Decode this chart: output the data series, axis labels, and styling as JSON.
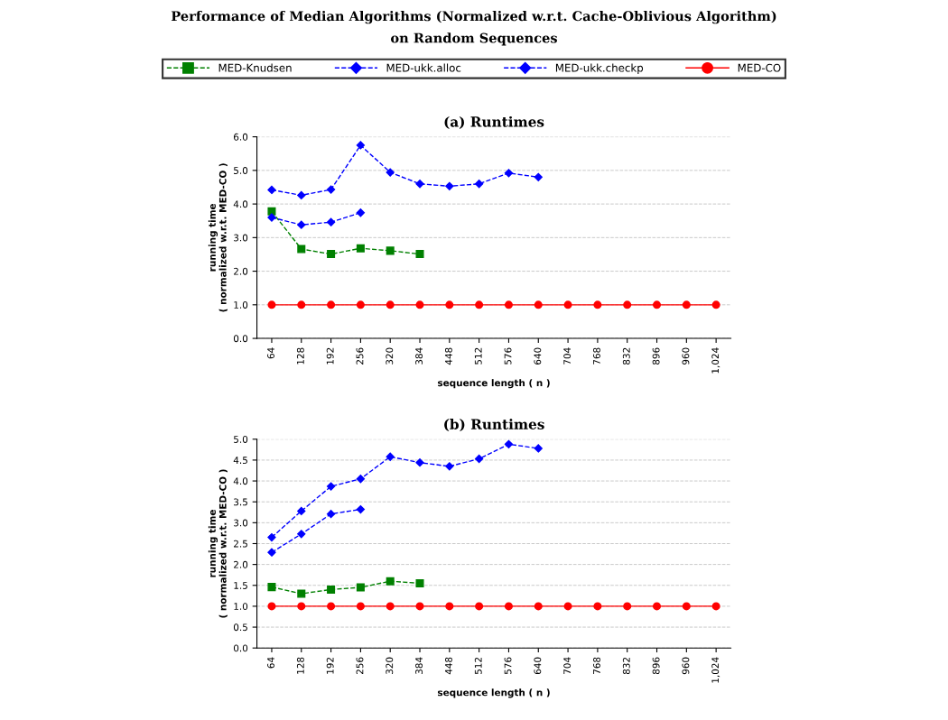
{
  "chart_data": [
    {
      "type": "line",
      "title": "Performance of Median Algorithms (Normalized w.r.t. Cache-Oblivious Algorithm)\non Random Sequences",
      "subtitle": "(a) Runtimes",
      "xlabel": "sequence length ( n )",
      "ylabel": "running time\n( normalized w.r.t. MED-CO )",
      "categories": [
        "64",
        "128",
        "192",
        "256",
        "320",
        "384",
        "448",
        "512",
        "576",
        "640",
        "704",
        "768",
        "832",
        "896",
        "960",
        "1,024"
      ],
      "ylim": [
        0,
        6
      ],
      "yticks": [
        {
          "value": 0,
          "label": "0.0"
        },
        {
          "value": 1,
          "label": "1.0"
        },
        {
          "value": 2,
          "label": "2.0"
        },
        {
          "value": 3,
          "label": "3.0"
        },
        {
          "value": 4,
          "label": "4.0"
        },
        {
          "value": 5,
          "label": "5.0"
        },
        {
          "value": 6,
          "label": "6.0"
        }
      ],
      "grid": "y",
      "legend": "top",
      "series": [
        {
          "name": "MED-Knudsen",
          "color": "#008000",
          "marker": "square",
          "line_style": "dashed",
          "values": [
            3.78,
            2.66,
            2.51,
            2.68,
            2.61,
            2.51,
            null,
            null,
            null,
            null,
            null,
            null,
            null,
            null,
            null,
            null
          ]
        },
        {
          "name": "MED-ukk.alloc",
          "color": "#0000ff",
          "marker": "diamond",
          "line_style": "dashed",
          "values": [
            3.6,
            3.38,
            3.46,
            3.74,
            null,
            null,
            null,
            null,
            null,
            null,
            null,
            null,
            null,
            null,
            null,
            null
          ]
        },
        {
          "name": "MED-ukk.checkp",
          "color": "#0000ff",
          "marker": "diamond",
          "line_style": "dashed",
          "values": [
            4.42,
            4.26,
            4.43,
            5.75,
            4.94,
            4.6,
            4.53,
            4.6,
            4.92,
            4.8,
            null,
            null,
            null,
            null,
            null,
            null
          ]
        },
        {
          "name": "MED-CO",
          "color": "#ff0000",
          "marker": "circle",
          "line_style": "solid",
          "values": [
            1,
            1,
            1,
            1,
            1,
            1,
            1,
            1,
            1,
            1,
            1,
            1,
            1,
            1,
            1,
            1
          ]
        }
      ]
    },
    {
      "type": "line",
      "subtitle": "(b) Runtimes",
      "xlabel": "sequence length ( n )",
      "ylabel": "running time\n( normalized w.r.t. MED-CO )",
      "categories": [
        "64",
        "128",
        "192",
        "256",
        "320",
        "384",
        "448",
        "512",
        "576",
        "640",
        "704",
        "768",
        "832",
        "896",
        "960",
        "1,024"
      ],
      "ylim": [
        0,
        5
      ],
      "yticks": [
        {
          "value": 0,
          "label": "0.0"
        },
        {
          "value": 0.5,
          "label": "0.5"
        },
        {
          "value": 1,
          "label": "1.0"
        },
        {
          "value": 1.5,
          "label": "1.5"
        },
        {
          "value": 2,
          "label": "2.0"
        },
        {
          "value": 2.5,
          "label": "2.5"
        },
        {
          "value": 3,
          "label": "3.0"
        },
        {
          "value": 3.5,
          "label": "3.5"
        },
        {
          "value": 4,
          "label": "4.0"
        },
        {
          "value": 4.5,
          "label": "4.5"
        },
        {
          "value": 5,
          "label": "5.0"
        }
      ],
      "grid": "y",
      "series": [
        {
          "color": "#008000",
          "marker": "square",
          "line_style": "dashed",
          "values": [
            1.46,
            1.3,
            1.4,
            1.45,
            1.6,
            1.55,
            null,
            null,
            null,
            null,
            null,
            null,
            null,
            null,
            null,
            null
          ]
        },
        {
          "color": "#0000ff",
          "marker": "diamond",
          "line_style": "dashed",
          "values": [
            2.29,
            2.73,
            3.21,
            3.32,
            null,
            null,
            null,
            null,
            null,
            null,
            null,
            null,
            null,
            null,
            null,
            null
          ]
        },
        {
          "color": "#0000ff",
          "marker": "diamond",
          "line_style": "dashed",
          "values": [
            2.65,
            3.28,
            3.87,
            4.05,
            4.58,
            4.44,
            4.35,
            4.53,
            4.88,
            4.78,
            null,
            null,
            null,
            null,
            null,
            null
          ]
        },
        {
          "color": "#ff0000",
          "marker": "circle",
          "line_style": "solid",
          "values": [
            1,
            1,
            1,
            1,
            1,
            1,
            1,
            1,
            1,
            1,
            1,
            1,
            1,
            1,
            1,
            1
          ]
        }
      ]
    }
  ]
}
